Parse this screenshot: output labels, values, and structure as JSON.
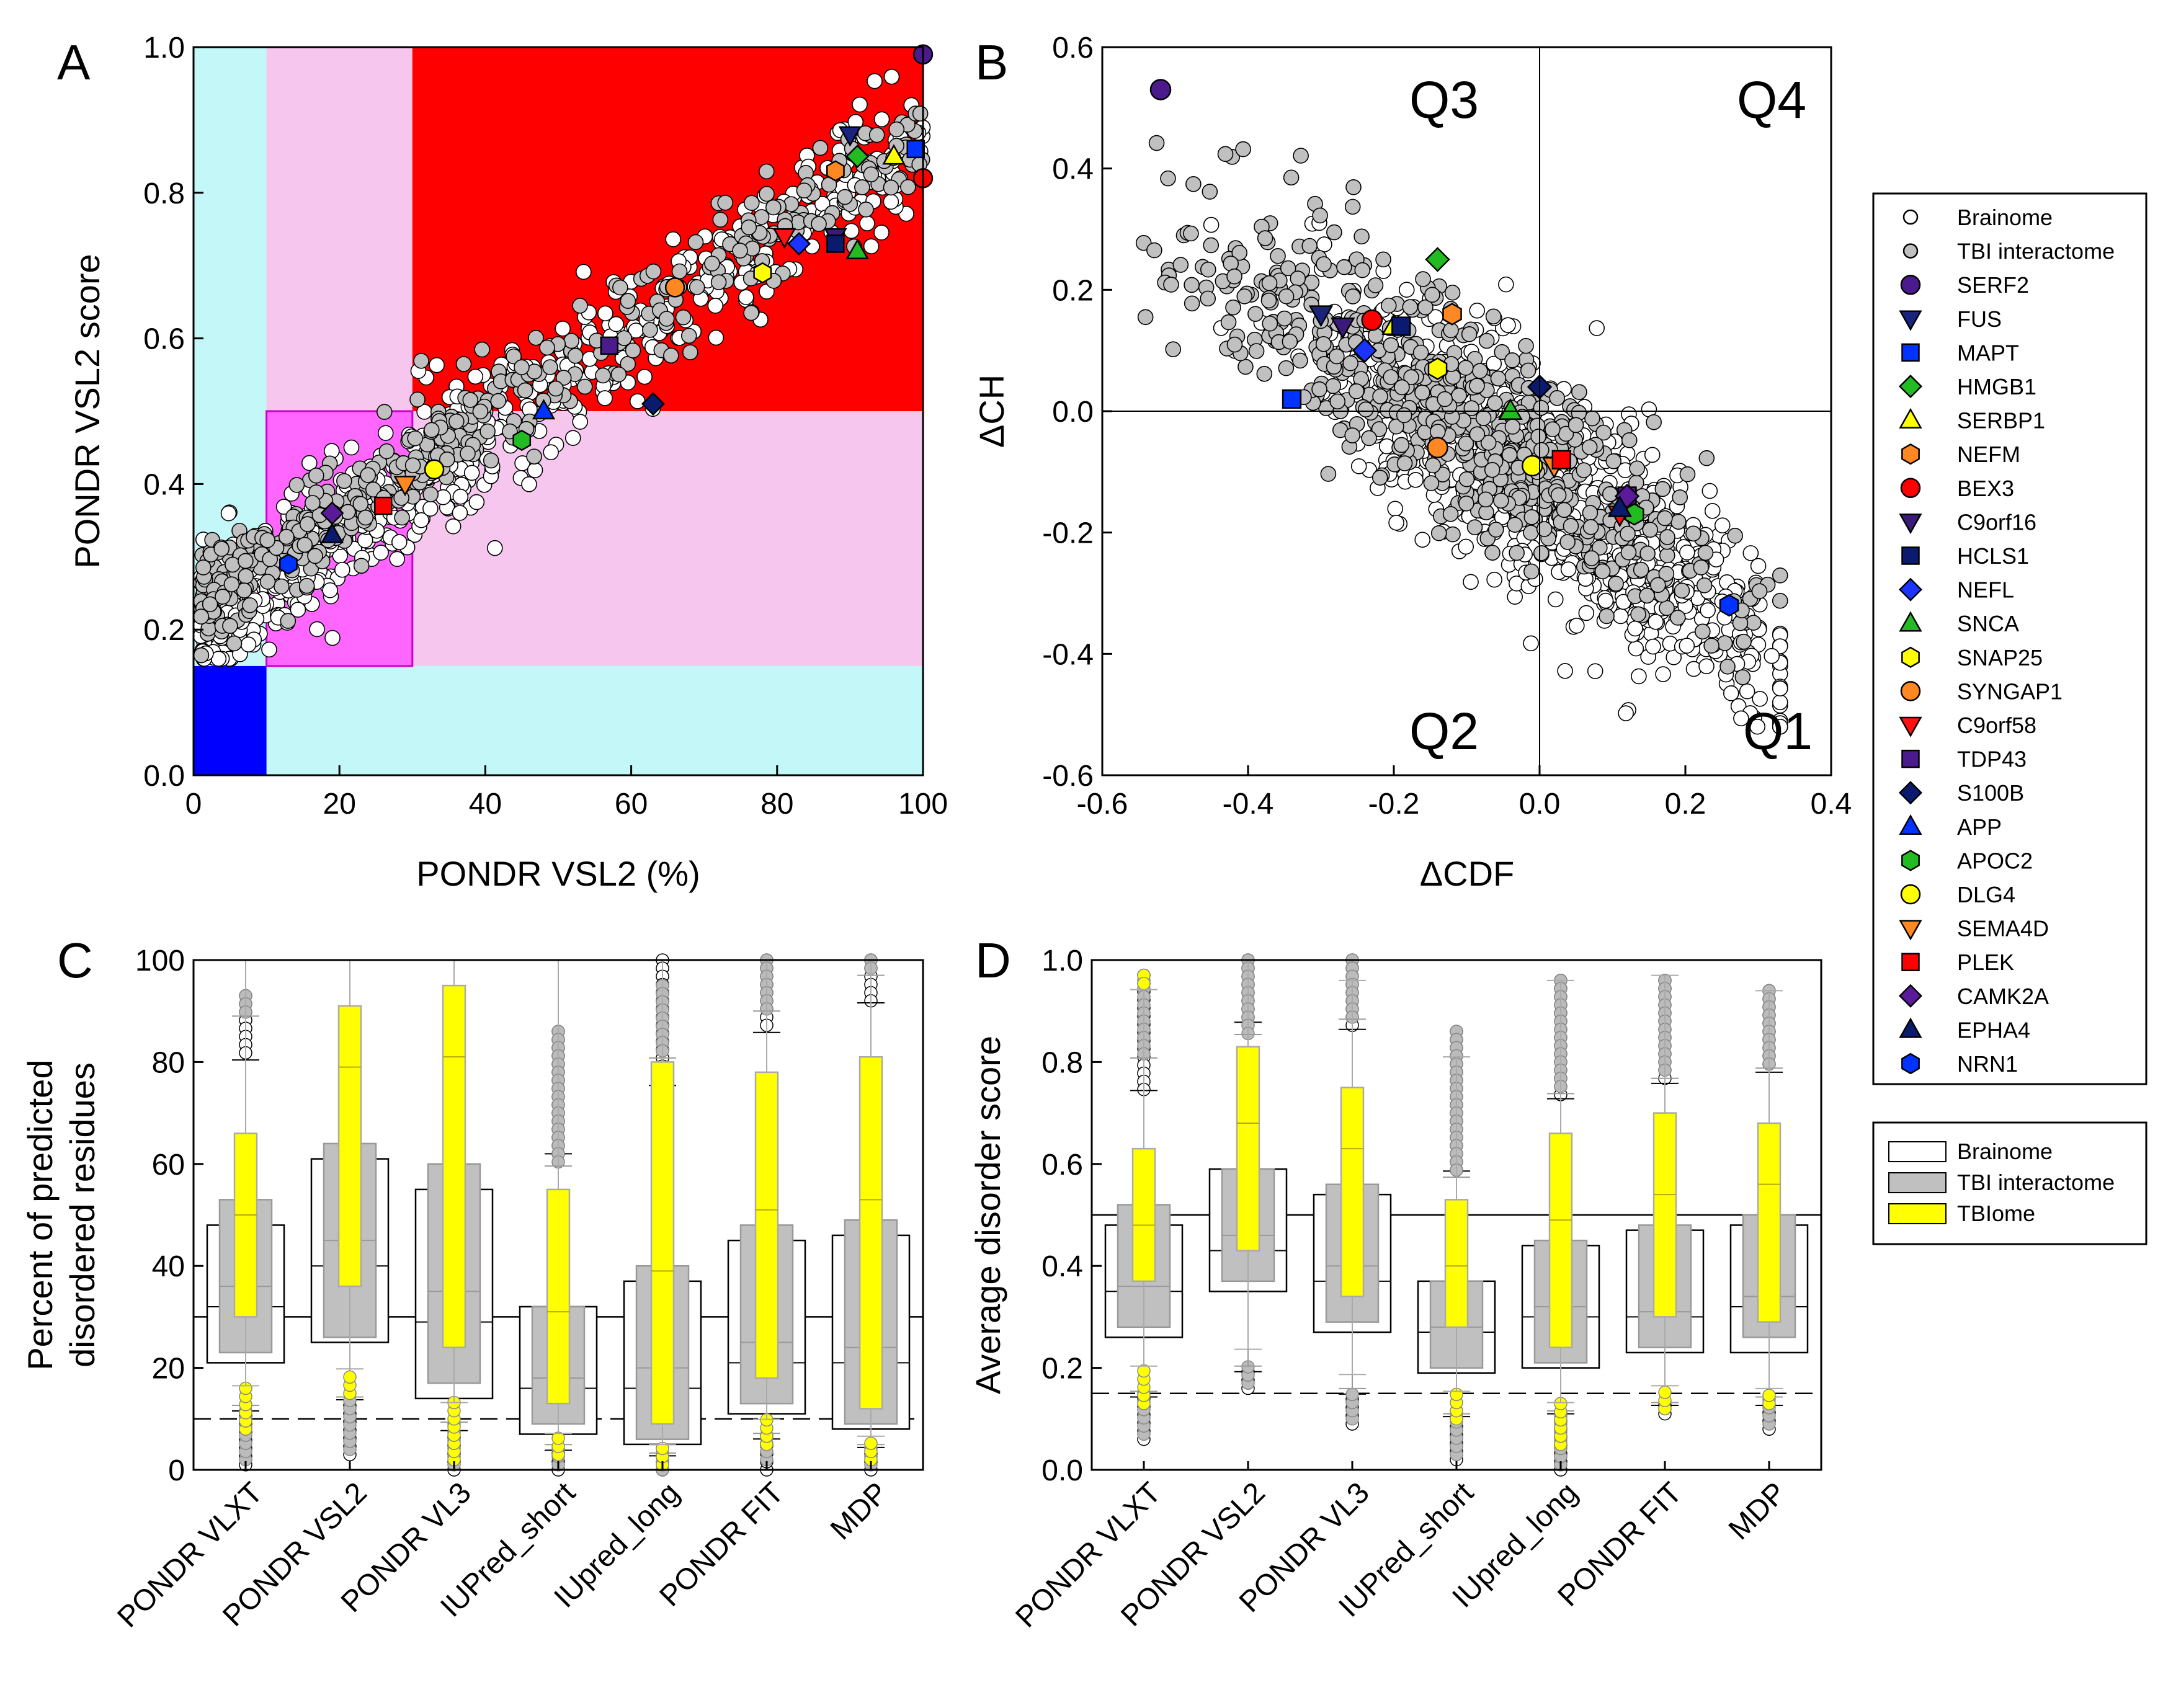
{
  "panel_a": {
    "letter": "A",
    "chart_data": {
      "type": "scatter",
      "xlabel": "PONDR VSL2 (%)",
      "ylabel": "PONDR VSL2 score",
      "xlim": [
        0,
        100
      ],
      "ylim": [
        0,
        1
      ],
      "xticks": [
        "0",
        "20",
        "40",
        "60",
        "80",
        "100"
      ],
      "yticks": [
        "0.0",
        "0.2",
        "0.4",
        "0.6",
        "0.8",
        "1.0"
      ],
      "regions": [
        {
          "x0": 0,
          "x1": 10,
          "y0": 0.15,
          "y1": 1.0,
          "color": "#c4f7f7"
        },
        {
          "x0": 10,
          "x1": 100,
          "y0": 0,
          "y1": 0.15,
          "color": "#c4f7f7"
        },
        {
          "x0": 0,
          "x1": 10,
          "y0": 0,
          "y1": 0.15,
          "color": "#0000ff"
        },
        {
          "x0": 10,
          "x1": 30,
          "y0": 0.5,
          "y1": 1.0,
          "color": "#f7c6ee"
        },
        {
          "x0": 30,
          "x1": 100,
          "y0": 0.15,
          "y1": 0.5,
          "color": "#f7c6ee"
        },
        {
          "x0": 10,
          "x1": 30,
          "y0": 0.15,
          "y1": 0.5,
          "color": "#ff66ff"
        },
        {
          "x0": 30,
          "x1": 100,
          "y0": 0.5,
          "y1": 1.0,
          "color": "#ff0000"
        }
      ],
      "background_series": [
        {
          "name": "Brainome",
          "trend": {
            "x0": 1,
            "y0": 0.2,
            "x1": 100,
            "y1": 0.88
          },
          "spread": 0.045,
          "count": 700,
          "color": "#ffffff"
        },
        {
          "name": "TBI interactome",
          "trend": {
            "x0": 1,
            "y0": 0.24,
            "x1": 100,
            "y1": 0.88
          },
          "spread": 0.035,
          "count": 450,
          "color": "#c0c0c0"
        }
      ],
      "highlights": [
        {
          "name": "SERF2",
          "x": 100,
          "y": 0.99
        },
        {
          "name": "FUS",
          "x": 90,
          "y": 0.88
        },
        {
          "name": "MAPT",
          "x": 99,
          "y": 0.86
        },
        {
          "name": "HMGB1",
          "x": 91,
          "y": 0.85
        },
        {
          "name": "SERBP1",
          "x": 96,
          "y": 0.85
        },
        {
          "name": "NEFM",
          "x": 88,
          "y": 0.83
        },
        {
          "name": "BEX3",
          "x": 100,
          "y": 0.82
        },
        {
          "name": "C9orf16",
          "x": 88,
          "y": 0.74
        },
        {
          "name": "HCLS1",
          "x": 88,
          "y": 0.73
        },
        {
          "name": "NEFL",
          "x": 83,
          "y": 0.73
        },
        {
          "name": "SNCA",
          "x": 91,
          "y": 0.72
        },
        {
          "name": "SNAP25",
          "x": 78,
          "y": 0.69
        },
        {
          "name": "SYNGAP1",
          "x": 66,
          "y": 0.67
        },
        {
          "name": "C9orf58",
          "x": 81,
          "y": 0.74
        },
        {
          "name": "TDP43",
          "x": 57,
          "y": 0.59
        },
        {
          "name": "S100B",
          "x": 63,
          "y": 0.51
        },
        {
          "name": "APP",
          "x": 48,
          "y": 0.5
        },
        {
          "name": "APOC2",
          "x": 45,
          "y": 0.46
        },
        {
          "name": "DLG4",
          "x": 33,
          "y": 0.42
        },
        {
          "name": "SEMA4D",
          "x": 29,
          "y": 0.4
        },
        {
          "name": "PLEK",
          "x": 26,
          "y": 0.37
        },
        {
          "name": "CAMK2A",
          "x": 19,
          "y": 0.36
        },
        {
          "name": "EPHA4",
          "x": 19,
          "y": 0.33
        },
        {
          "name": "NRN1",
          "x": 13,
          "y": 0.29
        }
      ]
    }
  },
  "panel_b": {
    "letter": "B",
    "chart_data": {
      "type": "scatter",
      "xlabel": "ΔCDF",
      "ylabel": "ΔCH",
      "xlim": [
        -0.6,
        0.4
      ],
      "ylim": [
        -0.6,
        0.6
      ],
      "xticks": [
        "-0.6",
        "-0.4",
        "-0.2",
        "0.0",
        "0.2",
        "0.4"
      ],
      "yticks": [
        "-0.6",
        "-0.4",
        "-0.2",
        "0.0",
        "0.2",
        "0.4",
        "0.6"
      ],
      "quadrants": [
        "Q3",
        "Q4",
        "Q2",
        "Q1"
      ],
      "background_series": [
        {
          "name": "Brainome",
          "center": {
            "x": 0.02,
            "y": -0.14
          },
          "slope": -0.78,
          "spread": 0.09,
          "count": 900,
          "color": "#ffffff"
        },
        {
          "name": "TBI interactome",
          "center": {
            "x": -0.08,
            "y": -0.04
          },
          "slope": -0.75,
          "spread": 0.08,
          "count": 650,
          "color": "#c0c0c0"
        }
      ],
      "highlights": [
        {
          "name": "SERF2",
          "x": -0.52,
          "y": 0.53
        },
        {
          "name": "FUS",
          "x": -0.3,
          "y": 0.16
        },
        {
          "name": "MAPT",
          "x": -0.34,
          "y": 0.02
        },
        {
          "name": "HMGB1",
          "x": -0.14,
          "y": 0.25
        },
        {
          "name": "SERBP1",
          "x": -0.2,
          "y": 0.14
        },
        {
          "name": "NEFM",
          "x": -0.12,
          "y": 0.16
        },
        {
          "name": "BEX3",
          "x": -0.23,
          "y": 0.15
        },
        {
          "name": "C9orf16",
          "x": -0.27,
          "y": 0.14
        },
        {
          "name": "HCLS1",
          "x": -0.19,
          "y": 0.14
        },
        {
          "name": "NEFL",
          "x": -0.24,
          "y": 0.1
        },
        {
          "name": "SNCA",
          "x": -0.04,
          "y": 0.0
        },
        {
          "name": "SNAP25",
          "x": -0.14,
          "y": 0.07
        },
        {
          "name": "SYNGAP1",
          "x": -0.14,
          "y": -0.06
        },
        {
          "name": "C9orf58",
          "x": 0.11,
          "y": -0.17
        },
        {
          "name": "TDP43",
          "x": 0.12,
          "y": -0.14
        },
        {
          "name": "S100B",
          "x": 0.0,
          "y": 0.04
        },
        {
          "name": "APP",
          "x": 0.11,
          "y": -0.16
        },
        {
          "name": "APOC2",
          "x": 0.13,
          "y": -0.17
        },
        {
          "name": "DLG4",
          "x": -0.01,
          "y": -0.09
        },
        {
          "name": "SEMA4D",
          "x": 0.02,
          "y": -0.09
        },
        {
          "name": "PLEK",
          "x": 0.03,
          "y": -0.08
        },
        {
          "name": "CAMK2A",
          "x": 0.12,
          "y": -0.14
        },
        {
          "name": "EPHA4",
          "x": 0.11,
          "y": -0.16
        },
        {
          "name": "NRN1",
          "x": 0.26,
          "y": -0.32
        }
      ]
    }
  },
  "legend_markers": {
    "entries": [
      {
        "label": "Brainome",
        "shape": "circle",
        "color": "#ffffff"
      },
      {
        "label": "TBI interactome",
        "shape": "circle",
        "color": "#c0c0c0"
      },
      {
        "label": "SERF2",
        "shape": "circle",
        "color": "#4b1a8c"
      },
      {
        "label": "FUS",
        "shape": "triangle-down",
        "color": "#1a237e"
      },
      {
        "label": "MAPT",
        "shape": "square",
        "color": "#0033ff"
      },
      {
        "label": "HMGB1",
        "shape": "diamond",
        "color": "#22bb22"
      },
      {
        "label": "SERBP1",
        "shape": "triangle-up",
        "color": "#ffff00"
      },
      {
        "label": "NEFM",
        "shape": "hexagon",
        "color": "#ff8822"
      },
      {
        "label": "BEX3",
        "shape": "circle",
        "color": "#ff0000"
      },
      {
        "label": "C9orf16",
        "shape": "triangle-down",
        "color": "#3a1a7a"
      },
      {
        "label": "HCLS1",
        "shape": "square",
        "color": "#0a1a6e"
      },
      {
        "label": "NEFL",
        "shape": "diamond",
        "color": "#1a33ff"
      },
      {
        "label": "SNCA",
        "shape": "triangle-up",
        "color": "#22bb22"
      },
      {
        "label": "SNAP25",
        "shape": "hexagon",
        "color": "#ffff00"
      },
      {
        "label": "SYNGAP1",
        "shape": "circle",
        "color": "#ff8822"
      },
      {
        "label": "C9orf58",
        "shape": "triangle-down",
        "color": "#ff1111"
      },
      {
        "label": "TDP43",
        "shape": "square",
        "color": "#4b1a8c"
      },
      {
        "label": "S100B",
        "shape": "diamond",
        "color": "#0a1a6e"
      },
      {
        "label": "APP",
        "shape": "triangle-up",
        "color": "#0033ff"
      },
      {
        "label": "APOC2",
        "shape": "hexagon",
        "color": "#22bb22"
      },
      {
        "label": "DLG4",
        "shape": "circle",
        "color": "#ffff00"
      },
      {
        "label": "SEMA4D",
        "shape": "triangle-down",
        "color": "#ff8822"
      },
      {
        "label": "PLEK",
        "shape": "square",
        "color": "#ff0000"
      },
      {
        "label": "CAMK2A",
        "shape": "diamond",
        "color": "#5a1a9a"
      },
      {
        "label": "EPHA4",
        "shape": "triangle-up",
        "color": "#0a1a6e"
      },
      {
        "label": "NRN1",
        "shape": "hexagon",
        "color": "#0033ff"
      }
    ]
  },
  "legend_boxes": {
    "entries": [
      {
        "label": "Brainome",
        "color": "#ffffff"
      },
      {
        "label": "TBI interactome",
        "color": "#c0c0c0"
      },
      {
        "label": "TBIome",
        "color": "#ffff00"
      }
    ]
  },
  "panel_c": {
    "letter": "C",
    "chart_data": {
      "type": "box",
      "ylabel_lines": [
        "Percent of predicted",
        "disordered residues"
      ],
      "ylim": [
        0,
        100
      ],
      "yticks": [
        "0",
        "20",
        "40",
        "60",
        "80",
        "100"
      ],
      "reference_lines": [
        {
          "y": 30,
          "style": "solid"
        },
        {
          "y": 10,
          "style": "dashed"
        }
      ],
      "categories": [
        "PONDR VLXT",
        "PONDR VSL2",
        "PONDR VL3",
        "IUPred_short",
        "IUpred_long",
        "PONDR FIT",
        "MDP"
      ],
      "series": [
        {
          "name": "Brainome",
          "color": "#ffffff",
          "boxes": [
            {
              "q1": 21,
              "median": 32,
              "q3": 48,
              "lo": 1,
              "hi": 93
            },
            {
              "q1": 25,
              "median": 40,
              "q3": 61,
              "lo": 3,
              "hi": 100
            },
            {
              "q1": 14,
              "median": 29,
              "q3": 55,
              "lo": 0,
              "hi": 100
            },
            {
              "q1": 7,
              "median": 16,
              "q3": 32,
              "lo": 0,
              "hi": 86
            },
            {
              "q1": 5,
              "median": 16,
              "q3": 37,
              "lo": 0,
              "hi": 100
            },
            {
              "q1": 11,
              "median": 21,
              "q3": 45,
              "lo": 0,
              "hi": 100
            },
            {
              "q1": 8,
              "median": 21,
              "q3": 46,
              "lo": 0,
              "hi": 100
            }
          ]
        },
        {
          "name": "TBI interactome",
          "color": "#c0c0c0",
          "boxes": [
            {
              "q1": 23,
              "median": 36,
              "q3": 53,
              "lo": 2,
              "hi": 93
            },
            {
              "q1": 26,
              "median": 45,
              "q3": 64,
              "lo": 4,
              "hi": 100
            },
            {
              "q1": 17,
              "median": 35,
              "q3": 60,
              "lo": 1,
              "hi": 100
            },
            {
              "q1": 9,
              "median": 18,
              "q3": 32,
              "lo": 1,
              "hi": 86
            },
            {
              "q1": 6,
              "median": 20,
              "q3": 40,
              "lo": 0,
              "hi": 95
            },
            {
              "q1": 13,
              "median": 25,
              "q3": 48,
              "lo": 2,
              "hi": 100
            },
            {
              "q1": 9,
              "median": 24,
              "q3": 49,
              "lo": 1,
              "hi": 100
            }
          ]
        },
        {
          "name": "TBIome",
          "color": "#ffff00",
          "boxes": [
            {
              "q1": 30,
              "median": 50,
              "q3": 66,
              "lo": 8,
              "hi": 100
            },
            {
              "q1": 36,
              "median": 79,
              "q3": 91,
              "lo": 15,
              "hi": 100
            },
            {
              "q1": 24,
              "median": 81,
              "q3": 95,
              "lo": 2,
              "hi": 100
            },
            {
              "q1": 13,
              "median": 31,
              "q3": 55,
              "lo": 3,
              "hi": 100
            },
            {
              "q1": 9,
              "median": 39,
              "q3": 80,
              "lo": 1,
              "hi": 100
            },
            {
              "q1": 18,
              "median": 51,
              "q3": 78,
              "lo": 5,
              "hi": 100
            },
            {
              "q1": 12,
              "median": 53,
              "q3": 81,
              "lo": 2,
              "hi": 100
            }
          ]
        }
      ]
    }
  },
  "panel_d": {
    "letter": "D",
    "chart_data": {
      "type": "box",
      "ylabel": "Average disorder score",
      "ylim": [
        0,
        1
      ],
      "yticks": [
        "0.0",
        "0.2",
        "0.4",
        "0.6",
        "0.8",
        "1.0"
      ],
      "reference_lines": [
        {
          "y": 0.5,
          "style": "solid"
        },
        {
          "y": 0.15,
          "style": "dashed"
        }
      ],
      "categories": [
        "PONDR VLXT",
        "PONDR VSL2",
        "PONDR VL3",
        "IUPred_short",
        "IUpred_long",
        "PONDR FIT",
        "MDP"
      ],
      "series": [
        {
          "name": "Brainome",
          "color": "#ffffff",
          "boxes": [
            {
              "q1": 0.26,
              "median": 0.35,
              "q3": 0.48,
              "lo": 0.06,
              "hi": 0.97
            },
            {
              "q1": 0.35,
              "median": 0.43,
              "q3": 0.59,
              "lo": 0.16,
              "hi": 1.0
            },
            {
              "q1": 0.27,
              "median": 0.37,
              "q3": 0.54,
              "lo": 0.09,
              "hi": 1.0
            },
            {
              "q1": 0.19,
              "median": 0.27,
              "q3": 0.37,
              "lo": 0.02,
              "hi": 0.86
            },
            {
              "q1": 0.2,
              "median": 0.3,
              "q3": 0.44,
              "lo": 0.0,
              "hi": 0.96
            },
            {
              "q1": 0.23,
              "median": 0.3,
              "q3": 0.47,
              "lo": 0.11,
              "hi": 0.96
            },
            {
              "q1": 0.23,
              "median": 0.32,
              "q3": 0.48,
              "lo": 0.08,
              "hi": 0.94
            }
          ]
        },
        {
          "name": "TBI interactome",
          "color": "#c0c0c0",
          "boxes": [
            {
              "q1": 0.28,
              "median": 0.36,
              "q3": 0.52,
              "lo": 0.07,
              "hi": 0.96
            },
            {
              "q1": 0.37,
              "median": 0.46,
              "q3": 0.59,
              "lo": 0.17,
              "hi": 1.0
            },
            {
              "q1": 0.29,
              "median": 0.4,
              "q3": 0.56,
              "lo": 0.1,
              "hi": 1.0
            },
            {
              "q1": 0.2,
              "median": 0.28,
              "q3": 0.37,
              "lo": 0.03,
              "hi": 0.86
            },
            {
              "q1": 0.21,
              "median": 0.32,
              "q3": 0.45,
              "lo": 0.01,
              "hi": 0.96
            },
            {
              "q1": 0.24,
              "median": 0.31,
              "q3": 0.48,
              "lo": 0.12,
              "hi": 0.96
            },
            {
              "q1": 0.26,
              "median": 0.34,
              "q3": 0.5,
              "lo": 0.09,
              "hi": 0.94
            }
          ]
        },
        {
          "name": "TBIome",
          "color": "#ffff00",
          "boxes": [
            {
              "q1": 0.37,
              "median": 0.48,
              "q3": 0.63,
              "lo": 0.13,
              "hi": 0.97
            },
            {
              "q1": 0.43,
              "median": 0.68,
              "q3": 0.83,
              "lo": 0.25,
              "hi": 1.0
            },
            {
              "q1": 0.34,
              "median": 0.63,
              "q3": 0.75,
              "lo": 0.19,
              "hi": 0.96
            },
            {
              "q1": 0.28,
              "median": 0.4,
              "q3": 0.53,
              "lo": 0.1,
              "hi": 0.81
            },
            {
              "q1": 0.24,
              "median": 0.49,
              "q3": 0.66,
              "lo": 0.05,
              "hi": 0.96
            },
            {
              "q1": 0.3,
              "median": 0.54,
              "q3": 0.7,
              "lo": 0.12,
              "hi": 0.97
            },
            {
              "q1": 0.29,
              "median": 0.56,
              "q3": 0.68,
              "lo": 0.13,
              "hi": 0.94
            }
          ]
        }
      ]
    }
  }
}
